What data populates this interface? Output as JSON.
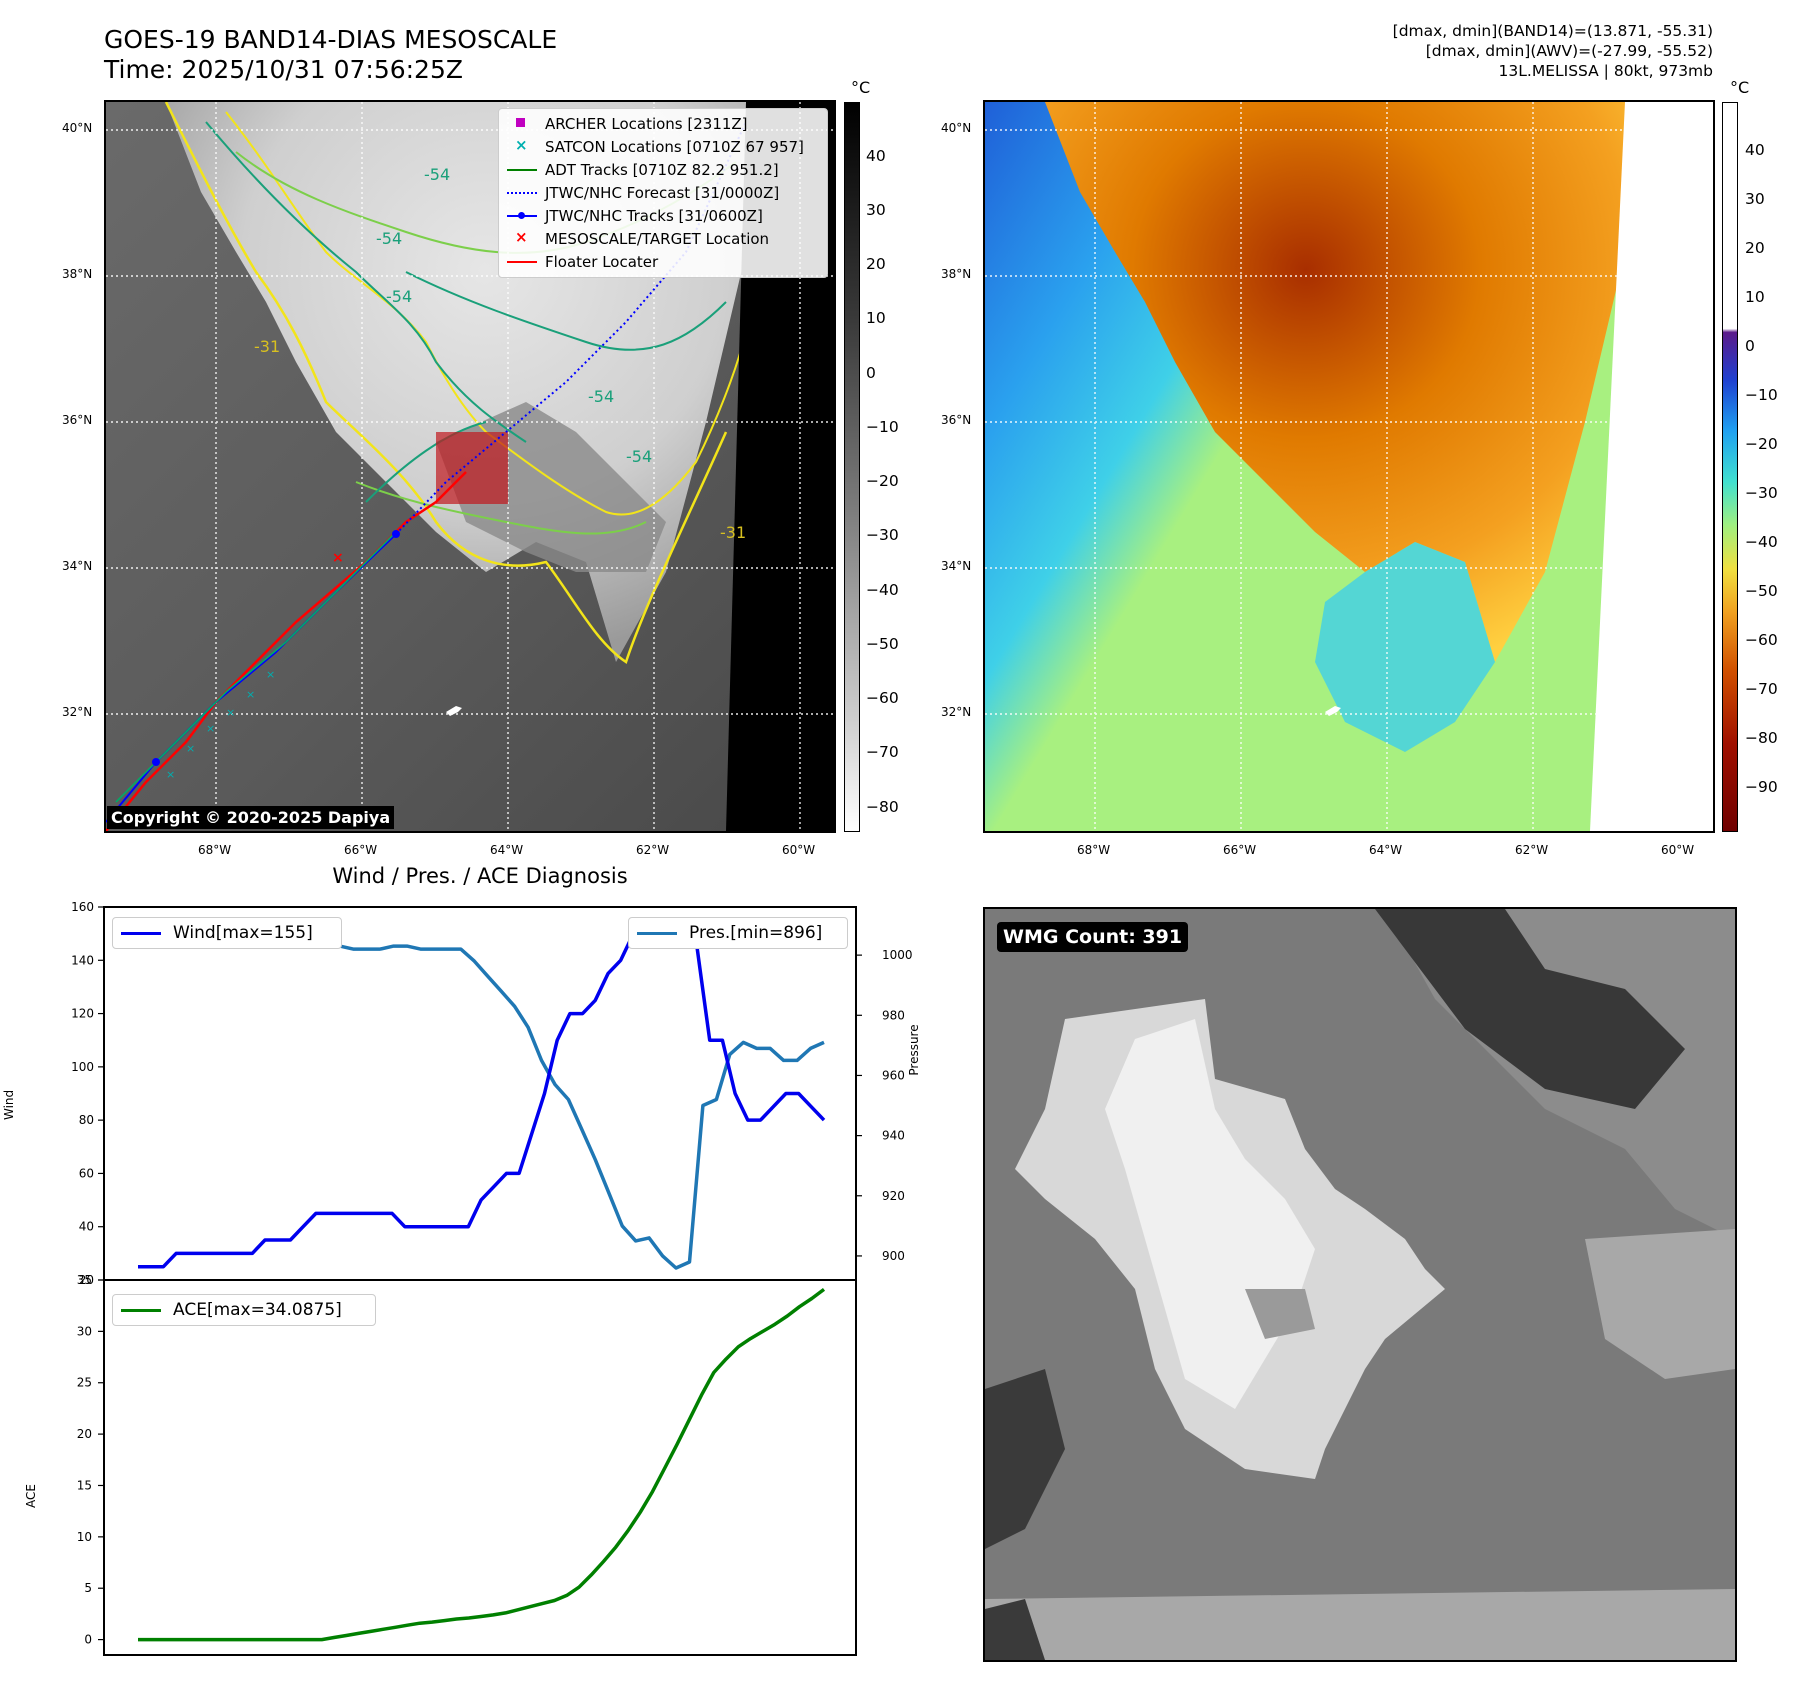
{
  "header": {
    "title_line1": "GOES-19 BAND14-DIAS MESOSCALE",
    "title_line2": "Time: 2025/10/31 07:56:25Z",
    "info_line1": "[dmax, dmin](BAND14)=(13.871, -55.31)",
    "info_line2": "[dmax, dmin](AWV)=(-27.99, -55.52)",
    "info_line3": "13L.MELISSA | 80kt, 973mb"
  },
  "map": {
    "lat_labels": [
      "40°N",
      "38°N",
      "36°N",
      "34°N",
      "32°N"
    ],
    "lon_labels": [
      "68°W",
      "66°W",
      "64°W",
      "62°W",
      "60°W"
    ],
    "copyright": "Copyright © 2020-2025 Dapiya",
    "contour_labels": [
      "-54",
      "-54",
      "-54",
      "-31",
      "-54",
      "-54",
      "-31"
    ],
    "legend": [
      {
        "label": "ARCHER Locations [2311Z]",
        "color": "#c000c0",
        "marker": "square"
      },
      {
        "label": "SATCON Locations [0710Z 67 957]",
        "color": "#00b0b0",
        "marker": "x"
      },
      {
        "label": "ADT Tracks [0710Z 82.2 951.2]",
        "color": "#008000",
        "marker": "line"
      },
      {
        "label": "JTWC/NHC Forecast [31/0000Z]",
        "color": "#0000ff",
        "marker": "dotted"
      },
      {
        "label": "JTWC/NHC Tracks [31/0600Z]",
        "color": "#0000ff",
        "marker": "line-dot"
      },
      {
        "label": "MESOSCALE/TARGET Location",
        "color": "#ff0000",
        "marker": "x"
      },
      {
        "label": "Floater Locater",
        "color": "#ff0000",
        "marker": "line"
      }
    ]
  },
  "colorbar_left": {
    "unit": "°C",
    "ticks": [
      "40",
      "30",
      "20",
      "10",
      "0",
      "−10",
      "−20",
      "−30",
      "−40",
      "−50",
      "−60",
      "−70",
      "−80"
    ]
  },
  "colorbar_right": {
    "unit": "°C",
    "ticks": [
      "40",
      "30",
      "20",
      "10",
      "0",
      "−10",
      "−20",
      "−30",
      "−40",
      "−50",
      "−60",
      "−70",
      "−80",
      "−90"
    ]
  },
  "diag": {
    "title": "Wind / Pres. / ACE Diagnosis",
    "wind_axis_label": "Wind",
    "pressure_axis_label": "Pressure",
    "ace_axis_label": "ACE",
    "wind_legend": "Wind[max=155]",
    "pres_legend": "Pres.[min=896]",
    "ace_legend": "ACE[max=34.0875]",
    "colors": {
      "wind": "#0000ee",
      "pressure": "#1f77b4",
      "ace": "#008000"
    }
  },
  "wmg": {
    "label": "WMG Count: 391"
  },
  "chart_data": [
    {
      "type": "line",
      "title": "Wind / Pres. / ACE Diagnosis",
      "xlabel": "",
      "ylabel": "Wind",
      "ylim": [
        20,
        160
      ],
      "y_ticks": [
        20,
        40,
        60,
        80,
        100,
        120,
        140,
        160
      ],
      "y2label": "Pressure",
      "y2lim": [
        892,
        1016
      ],
      "y2_ticks": [
        900,
        920,
        940,
        960,
        980,
        1000
      ],
      "series": [
        {
          "name": "Wind[max=155]",
          "axis": "left",
          "values": [
            25,
            25,
            25,
            30,
            30,
            30,
            30,
            30,
            30,
            30,
            35,
            35,
            35,
            40,
            45,
            45,
            45,
            45,
            45,
            45,
            45,
            40,
            40,
            40,
            40,
            40,
            40,
            50,
            55,
            60,
            60,
            75,
            90,
            110,
            120,
            120,
            125,
            135,
            140,
            150,
            150,
            150,
            155,
            155,
            145,
            110,
            110,
            90,
            80,
            80,
            85,
            90,
            90,
            85,
            80
          ]
        },
        {
          "name": "Pres.[min=896]",
          "axis": "right",
          "values": [
            1011,
            1011,
            1011,
            1011,
            1010,
            1010,
            1009,
            1009,
            1008,
            1008,
            1007,
            1006,
            1005,
            1004,
            1003,
            1003,
            1002,
            1002,
            1002,
            1003,
            1003,
            1002,
            1002,
            1002,
            1002,
            998,
            993,
            988,
            983,
            976,
            965,
            957,
            952,
            942,
            932,
            921,
            910,
            905,
            906,
            900,
            896,
            898,
            950,
            952,
            967,
            971,
            969,
            969,
            965,
            965,
            969,
            971
          ]
        }
      ]
    },
    {
      "type": "line",
      "xlabel": "",
      "ylabel": "ACE",
      "ylim": [
        -1.5,
        35
      ],
      "y_ticks": [
        0,
        5,
        10,
        15,
        20,
        25,
        30,
        35
      ],
      "series": [
        {
          "name": "ACE[max=34.0875]",
          "values": [
            0.0,
            0.0,
            0.0,
            0.0,
            0.0,
            0.0,
            0.0,
            0.0,
            0.0,
            0.0,
            0.0,
            0.0,
            0.0,
            0.0,
            0.0,
            0.0,
            0.2,
            0.4,
            0.6,
            0.8,
            1.0,
            1.2,
            1.4,
            1.6,
            1.7,
            1.85,
            2.0,
            2.1,
            2.25,
            2.4,
            2.6,
            2.9,
            3.2,
            3.5,
            3.8,
            4.3,
            5.1,
            6.3,
            7.6,
            9.0,
            10.6,
            12.4,
            14.4,
            16.7,
            19.0,
            21.4,
            23.8,
            26.0,
            27.3,
            28.5,
            29.3,
            30.0,
            30.7,
            31.5,
            32.4,
            33.2,
            34.0875
          ]
        }
      ]
    }
  ]
}
